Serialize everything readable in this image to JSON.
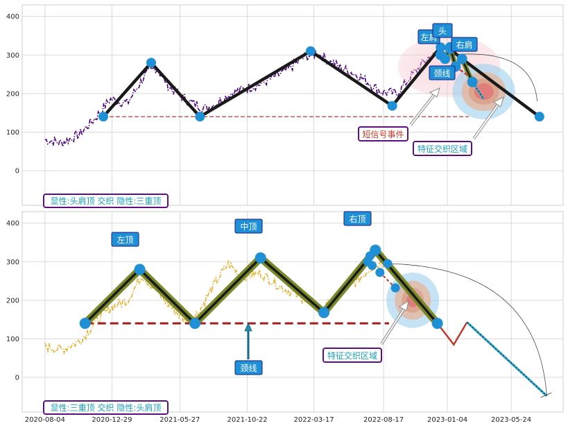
{
  "chart_data": [
    {
      "type": "line",
      "panel": "top",
      "xlim": [
        "2020-06-15",
        "2023-09-15"
      ],
      "ylim": [
        -90,
        430
      ],
      "yticks": [
        0,
        100,
        200,
        300,
        400
      ],
      "grid": true,
      "price_color": "#4b0082",
      "price_start_date": "2020-08-04",
      "price_end_date": "2023-01-10",
      "price_anchors": [
        {
          "x": "2020-08-04",
          "y": 80
        },
        {
          "x": "2020-09-10",
          "y": 72
        },
        {
          "x": "2020-10-20",
          "y": 95
        },
        {
          "x": "2020-11-25",
          "y": 140
        },
        {
          "x": "2020-12-25",
          "y": 185
        },
        {
          "x": "2021-02-01",
          "y": 175
        },
        {
          "x": "2021-03-10",
          "y": 245
        },
        {
          "x": "2021-04-05",
          "y": 268
        },
        {
          "x": "2021-05-05",
          "y": 215
        },
        {
          "x": "2021-06-15",
          "y": 180
        },
        {
          "x": "2021-07-25",
          "y": 160
        },
        {
          "x": "2021-09-15",
          "y": 200
        },
        {
          "x": "2021-11-20",
          "y": 225
        },
        {
          "x": "2022-01-10",
          "y": 255
        },
        {
          "x": "2022-02-25",
          "y": 295
        },
        {
          "x": "2022-03-25",
          "y": 305
        },
        {
          "x": "2022-05-10",
          "y": 270
        },
        {
          "x": "2022-06-25",
          "y": 245
        },
        {
          "x": "2022-08-10",
          "y": 205
        },
        {
          "x": "2022-09-15",
          "y": 200
        },
        {
          "x": "2022-10-20",
          "y": 250
        },
        {
          "x": "2022-11-20",
          "y": 290
        },
        {
          "x": "2022-12-15",
          "y": 305
        },
        {
          "x": "2023-01-10",
          "y": 295
        }
      ],
      "zigzag": [
        {
          "x": "2020-12-10",
          "y": 140
        },
        {
          "x": "2021-03-25",
          "y": 280
        },
        {
          "x": "2021-07-10",
          "y": 140
        },
        {
          "x": "2022-03-10",
          "y": 310
        },
        {
          "x": "2022-09-05",
          "y": 168
        },
        {
          "x": "2022-12-20",
          "y": 320
        },
        {
          "x": "2023-01-10",
          "y": 315
        },
        {
          "x": "2023-02-05",
          "y": 290
        },
        {
          "x": "2023-07-25",
          "y": 140
        }
      ],
      "support_line": {
        "y": 140,
        "x_start": "2020-12-10",
        "x_end": "2023-02-20",
        "color": "#b22222"
      },
      "pattern_points": [
        {
          "x": "2022-12-20",
          "y": 300
        },
        {
          "x": "2022-12-30",
          "y": 290
        },
        {
          "x": "2023-01-10",
          "y": 320
        },
        {
          "x": "2023-01-22",
          "y": 270
        },
        {
          "x": "2023-02-05",
          "y": 290
        },
        {
          "x": "2023-02-28",
          "y": 230
        }
      ],
      "labels": {
        "left_shoulder": "左肩",
        "head": "头",
        "right_shoulder": "右肩",
        "neckline": "颈线"
      },
      "short_signal_event": "短信号事件",
      "feature_zone": "特征交织区域",
      "legend_text": "显性:头肩顶 交织 隐性:三重顶"
    },
    {
      "type": "line",
      "panel": "bottom",
      "xlim": [
        "2020-06-15",
        "2023-09-15"
      ],
      "ylim": [
        -90,
        430
      ],
      "yticks": [
        0,
        100,
        200,
        300,
        400
      ],
      "xticks": [
        "2020-08-04",
        "2020-12-29",
        "2021-05-27",
        "2021-10-22",
        "2022-03-17",
        "2022-08-17",
        "2023-01-04",
        "2023-05-24"
      ],
      "grid": true,
      "price_color": "#e8b030",
      "price_start_date": "2020-08-04",
      "price_end_date": "2022-08-20",
      "price_anchors": [
        {
          "x": "2020-08-04",
          "y": 80
        },
        {
          "x": "2020-09-10",
          "y": 72
        },
        {
          "x": "2020-10-20",
          "y": 95
        },
        {
          "x": "2020-11-25",
          "y": 145
        },
        {
          "x": "2020-12-25",
          "y": 180
        },
        {
          "x": "2021-02-01",
          "y": 200
        },
        {
          "x": "2021-03-05",
          "y": 265
        },
        {
          "x": "2021-04-01",
          "y": 230
        },
        {
          "x": "2021-05-05",
          "y": 185
        },
        {
          "x": "2021-06-05",
          "y": 150
        },
        {
          "x": "2021-07-05",
          "y": 165
        },
        {
          "x": "2021-08-10",
          "y": 240
        },
        {
          "x": "2021-09-10",
          "y": 295
        },
        {
          "x": "2021-10-10",
          "y": 260
        },
        {
          "x": "2021-11-20",
          "y": 270
        },
        {
          "x": "2022-01-10",
          "y": 230
        },
        {
          "x": "2022-02-20",
          "y": 205
        },
        {
          "x": "2022-04-05",
          "y": 175
        },
        {
          "x": "2022-05-10",
          "y": 215
        },
        {
          "x": "2022-06-20",
          "y": 250
        },
        {
          "x": "2022-07-20",
          "y": 285
        },
        {
          "x": "2022-08-20",
          "y": 300
        }
      ],
      "zigzag": [
        {
          "x": "2020-10-31",
          "y": 140
        },
        {
          "x": "2021-02-28",
          "y": 280
        },
        {
          "x": "2021-06-29",
          "y": 140
        },
        {
          "x": "2021-11-20",
          "y": 310
        },
        {
          "x": "2022-04-08",
          "y": 168
        },
        {
          "x": "2022-07-30",
          "y": 330
        },
        {
          "x": "2022-12-13",
          "y": 140
        }
      ],
      "support_line": {
        "y": 140,
        "x_start": "2020-10-31",
        "x_end": "2022-08-29",
        "color": "#a01c1c"
      },
      "projection": [
        {
          "x": "2022-12-13",
          "y": 140
        },
        {
          "x": "2023-01-18",
          "y": 85
        },
        {
          "x": "2023-02-16",
          "y": 143
        },
        {
          "x": "2023-08-10",
          "y": -48
        }
      ],
      "pattern_points": [
        {
          "x": "2022-07-13",
          "y": 300
        },
        {
          "x": "2022-07-18",
          "y": 315
        },
        {
          "x": "2022-07-23",
          "y": 290
        },
        {
          "x": "2022-08-09",
          "y": 272
        },
        {
          "x": "2022-08-26",
          "y": 295
        },
        {
          "x": "2022-09-12",
          "y": 232
        }
      ],
      "labels": {
        "left_top": "左顶",
        "middle_top": "中顶",
        "right_top": "右顶",
        "neckline": "颈线"
      },
      "feature_zone": "特征交织区域",
      "legend_text": "显性:三重顶 交织 隐性:头肩顶"
    }
  ]
}
